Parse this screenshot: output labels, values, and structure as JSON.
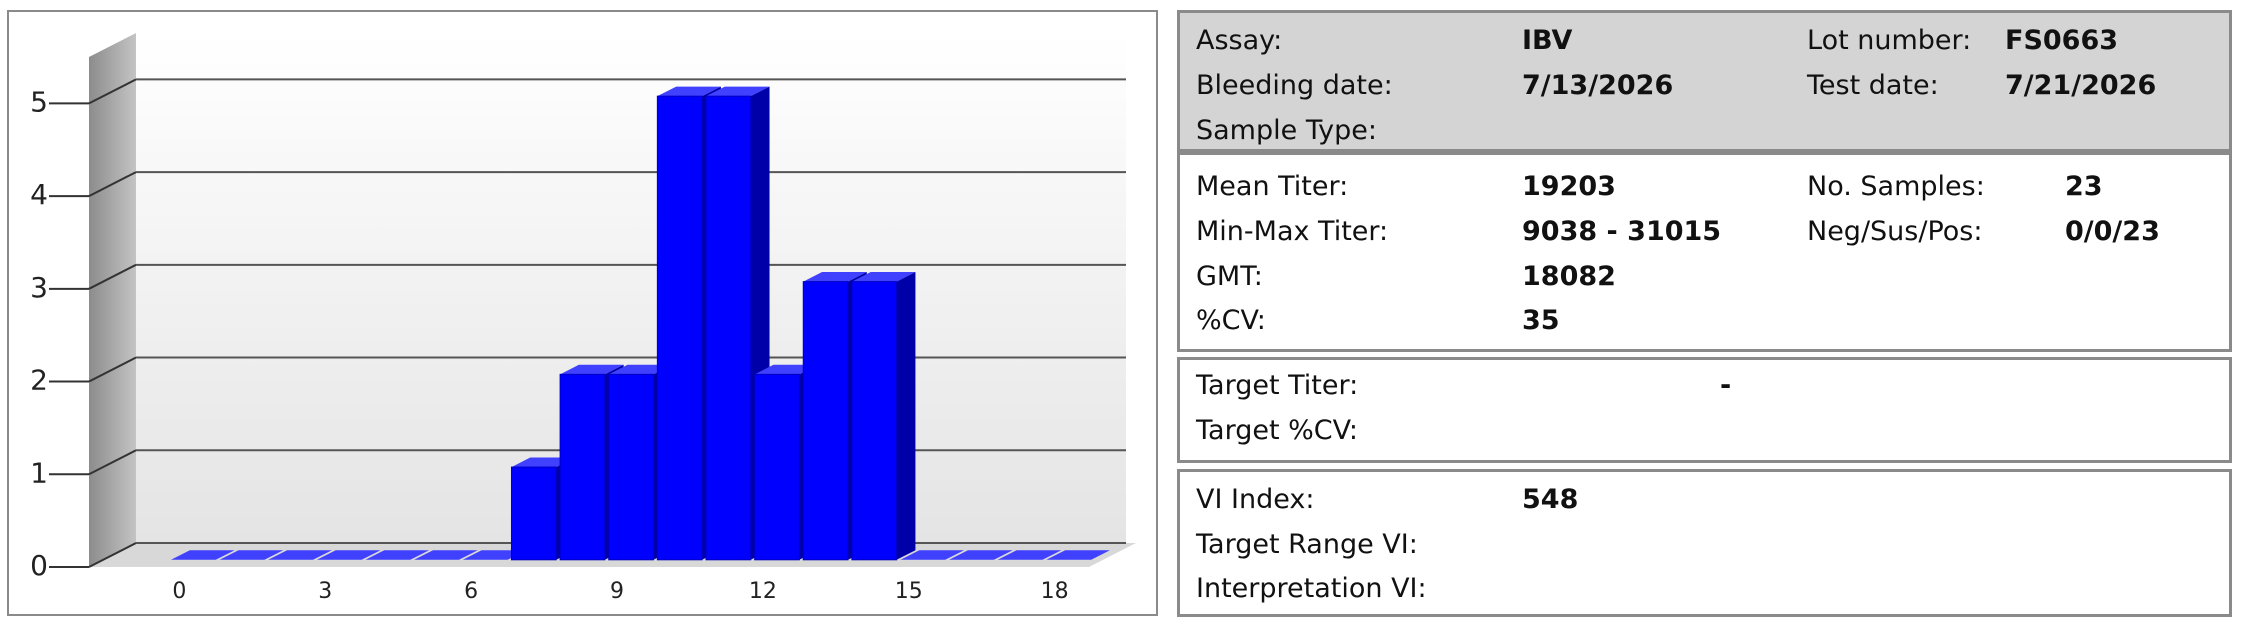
{
  "chart_data": {
    "type": "bar",
    "x": [
      0,
      1,
      2,
      3,
      4,
      5,
      6,
      7,
      8,
      9,
      10,
      11,
      12,
      13,
      14,
      15,
      16,
      17,
      18
    ],
    "values": [
      0,
      0,
      0,
      0,
      0,
      0,
      0,
      1,
      2,
      2,
      5,
      5,
      2,
      3,
      3,
      0,
      0,
      0,
      0
    ],
    "color": "#0000ff",
    "xlim": [
      -0.5,
      18.5
    ],
    "xticks": [
      0,
      3,
      6,
      9,
      12,
      15,
      18
    ],
    "ylim": [
      0,
      5.5
    ],
    "yticks": [
      0,
      1,
      2,
      3,
      4,
      5
    ],
    "grid": true
  },
  "sample_info": {
    "assay": {
      "label": "Assay:",
      "value": "IBV"
    },
    "lot_number": {
      "label": "Lot number:",
      "value": "FS0663"
    },
    "bleeding_date": {
      "label": "Bleeding date:",
      "value": "7/13/2026"
    },
    "test_date": {
      "label": "Test date:",
      "value": "7/21/2026"
    },
    "sample_type": {
      "label": "Sample Type:"
    }
  },
  "titer_stats": {
    "mean_titer": {
      "label": "Mean Titer:",
      "value": "19203"
    },
    "no_samples": {
      "label": "No. Samples:",
      "value": "23"
    },
    "min_max_titer": {
      "label": "Min-Max Titer:",
      "value": "9038 - 31015"
    },
    "neg_sus_pos": {
      "label": "Neg/Sus/Pos:",
      "value": "0/0/23"
    },
    "gmt": {
      "label": "GMT:",
      "value": "18082"
    },
    "cv": {
      "label": "%CV:",
      "value": "35"
    }
  },
  "target": {
    "target_titer": {
      "label": "Target Titer:",
      "value": "-"
    },
    "target_cv": {
      "label": "Target %CV:"
    }
  },
  "vi": {
    "vi_index": {
      "label": "VI Index:",
      "value": "548"
    },
    "target_range_vi": {
      "label": "Target Range VI:"
    },
    "interpretation_vi": {
      "label": "Interpretation VI:"
    }
  }
}
